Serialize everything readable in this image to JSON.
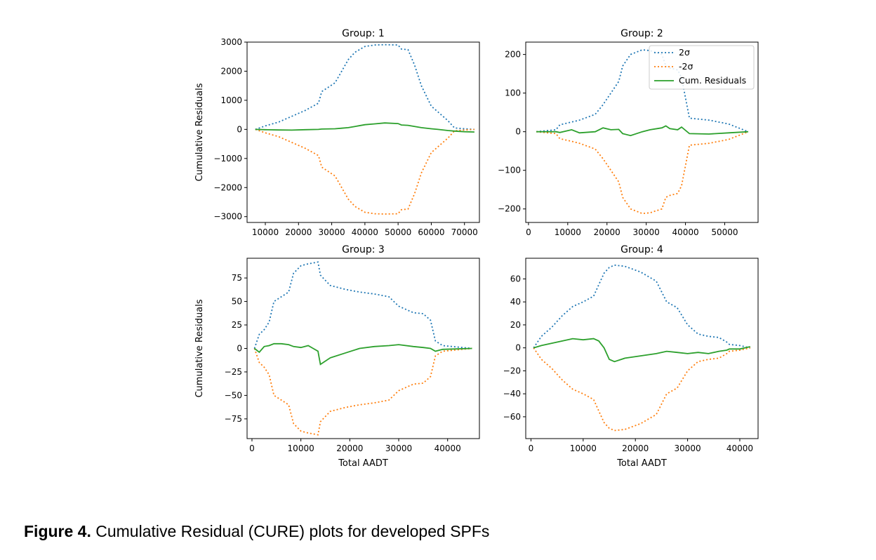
{
  "caption": {
    "label": "Figure 4.",
    "text": "Cumulative Residual (CURE) plots for developed SPFs"
  },
  "colors": {
    "plus_2sigma": "#1f77b4",
    "minus_2sigma": "#ff7f0e",
    "cum_residuals": "#2ca02c"
  },
  "legend": {
    "placement": "upper-right of Group: 2",
    "entries": [
      "2σ",
      "-2σ",
      "Cum. Residuals"
    ]
  },
  "chart_data": [
    {
      "type": "line",
      "title": "Group: 1",
      "xlabel": "",
      "ylabel": "Cumulative Residuals",
      "xlim": [
        4500,
        74500
      ],
      "ylim": [
        -3200,
        3000
      ],
      "xticks": [
        10000,
        20000,
        30000,
        40000,
        50000,
        60000,
        70000
      ],
      "yticks": [
        3000,
        2000,
        1000,
        0,
        -1000,
        -2000,
        -3000
      ],
      "x": [
        7000,
        10000,
        14000,
        18000,
        22000,
        26000,
        27000,
        31000,
        33000,
        35000,
        37000,
        40000,
        43000,
        46000,
        50000,
        51000,
        53000,
        55000,
        57000,
        60000,
        62000,
        65000,
        67000,
        70000,
        73000
      ],
      "series": [
        {
          "name": "2σ",
          "values": [
            0,
            120,
            250,
            450,
            650,
            900,
            1300,
            1600,
            2000,
            2400,
            2650,
            2850,
            2900,
            2910,
            2900,
            2760,
            2740,
            2200,
            1500,
            800,
            600,
            300,
            50,
            20,
            0
          ]
        },
        {
          "name": "-2σ",
          "values": [
            0,
            -120,
            -250,
            -450,
            -650,
            -900,
            -1300,
            -1600,
            -2000,
            -2400,
            -2650,
            -2850,
            -2900,
            -2910,
            -2900,
            -2760,
            -2740,
            -2200,
            -1500,
            -800,
            -600,
            -300,
            -50,
            -20,
            0
          ]
        },
        {
          "name": "Cum. Residuals",
          "values": [
            0,
            -10,
            -20,
            -25,
            -10,
            0,
            10,
            20,
            40,
            60,
            100,
            160,
            190,
            220,
            200,
            150,
            140,
            100,
            60,
            20,
            0,
            -40,
            -60,
            -80,
            -90
          ]
        }
      ]
    },
    {
      "type": "line",
      "title": "Group: 2",
      "xlabel": "",
      "ylabel": "",
      "xlim": [
        -700,
        58500
      ],
      "ylim": [
        -235,
        232
      ],
      "xticks": [
        0,
        10000,
        20000,
        30000,
        40000,
        50000
      ],
      "yticks": [
        200,
        100,
        0,
        -100,
        -200
      ],
      "x": [
        2000,
        7000,
        8000,
        11000,
        13000,
        17000,
        19000,
        21000,
        23000,
        24000,
        26000,
        29000,
        31000,
        34000,
        35000,
        36000,
        38000,
        39000,
        41000,
        46000,
        51000,
        56000
      ],
      "series": [
        {
          "name": "2σ",
          "values": [
            0,
            5,
            18,
            25,
            30,
            45,
            70,
            100,
            130,
            170,
            200,
            212,
            210,
            200,
            170,
            165,
            160,
            140,
            35,
            30,
            20,
            0
          ]
        },
        {
          "name": "-2σ",
          "values": [
            0,
            -5,
            -18,
            -25,
            -30,
            -45,
            -70,
            -100,
            -130,
            -170,
            -200,
            -212,
            -210,
            -200,
            -170,
            -165,
            -160,
            -140,
            -35,
            -30,
            -20,
            0
          ]
        },
        {
          "name": "Cum. Residuals",
          "values": [
            0,
            0,
            -2,
            5,
            -3,
            0,
            10,
            5,
            6,
            -5,
            -10,
            0,
            5,
            10,
            15,
            8,
            5,
            12,
            -5,
            -6,
            -3,
            0
          ]
        }
      ]
    },
    {
      "type": "line",
      "title": "Group: 3",
      "xlabel": "Total AADT",
      "ylabel": "Cumulative Residuals",
      "xlim": [
        -1000,
        46500
      ],
      "ylim": [
        -96,
        96
      ],
      "xticks": [
        0,
        10000,
        20000,
        30000,
        40000
      ],
      "yticks": [
        75,
        50,
        25,
        0,
        -25,
        -50,
        -75
      ],
      "x": [
        500,
        1500,
        2500,
        3500,
        4500,
        6000,
        7500,
        8500,
        10000,
        11500,
        12500,
        13500,
        14000,
        16000,
        19000,
        22000,
        25000,
        28000,
        30000,
        33000,
        35000,
        36500,
        37500,
        39000,
        45000
      ],
      "series": [
        {
          "name": "2σ",
          "values": [
            0,
            15,
            20,
            28,
            50,
            55,
            60,
            80,
            88,
            90,
            91,
            92,
            78,
            67,
            63,
            60,
            58,
            55,
            45,
            38,
            37,
            30,
            8,
            3,
            0
          ]
        },
        {
          "name": "-2σ",
          "values": [
            0,
            -15,
            -20,
            -28,
            -50,
            -55,
            -60,
            -80,
            -88,
            -90,
            -91,
            -92,
            -78,
            -67,
            -63,
            -60,
            -58,
            -55,
            -45,
            -38,
            -37,
            -30,
            -8,
            -3,
            0
          ]
        },
        {
          "name": "Cum. Residuals",
          "values": [
            0,
            -4,
            2,
            3,
            5,
            5,
            4,
            2,
            1,
            3,
            0,
            -3,
            -17,
            -10,
            -5,
            0,
            2,
            3,
            4,
            2,
            1,
            0,
            -3,
            -1,
            0
          ]
        }
      ]
    },
    {
      "type": "line",
      "title": "Group: 4",
      "xlabel": "Total AADT",
      "ylabel": "",
      "xlim": [
        -1000,
        43500
      ],
      "ylim": [
        -79,
        78
      ],
      "xticks": [
        0,
        10000,
        20000,
        30000,
        40000
      ],
      "yticks": [
        60,
        40,
        20,
        0,
        -20,
        -40,
        -60
      ],
      "x": [
        500,
        2000,
        4000,
        6000,
        8000,
        10000,
        12000,
        13000,
        14000,
        15000,
        16000,
        18000,
        21000,
        24000,
        26000,
        28000,
        30000,
        32000,
        34000,
        36000,
        37500,
        38000,
        40000,
        42000
      ],
      "series": [
        {
          "name": "2σ",
          "values": [
            0,
            10,
            18,
            28,
            36,
            40,
            45,
            55,
            65,
            70,
            72,
            71,
            66,
            58,
            40,
            35,
            20,
            12,
            10,
            9,
            5,
            3,
            2,
            0
          ]
        },
        {
          "name": "-2σ",
          "values": [
            0,
            -10,
            -18,
            -28,
            -36,
            -40,
            -45,
            -55,
            -65,
            -70,
            -72,
            -71,
            -66,
            -58,
            -40,
            -35,
            -20,
            -12,
            -10,
            -9,
            -5,
            -3,
            -2,
            0
          ]
        },
        {
          "name": "Cum. Residuals",
          "values": [
            0,
            2,
            4,
            6,
            8,
            7,
            8,
            6,
            0,
            -10,
            -12,
            -9,
            -7,
            -5,
            -3,
            -4,
            -5,
            -4,
            -5,
            -3,
            -2,
            -1,
            -1,
            1
          ]
        }
      ]
    }
  ]
}
